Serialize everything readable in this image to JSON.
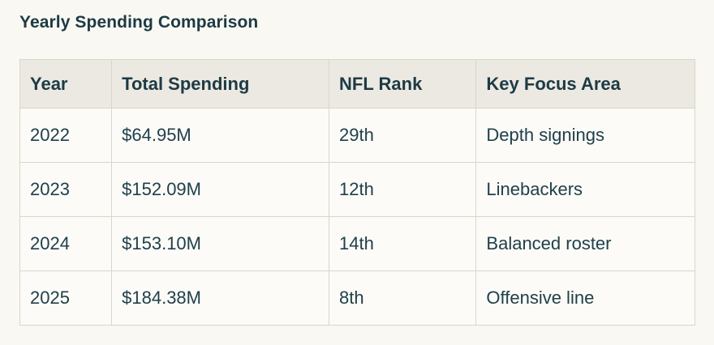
{
  "title": "Yearly Spending Comparison",
  "chart_data": {
    "type": "table",
    "title": "Yearly Spending Comparison",
    "columns": [
      "Year",
      "Total Spending",
      "NFL Rank",
      "Key Focus Area"
    ],
    "rows": [
      [
        "2022",
        "$64.95M",
        "29th",
        "Depth signings"
      ],
      [
        "2023",
        "$152.09M",
        "12th",
        "Linebackers"
      ],
      [
        "2024",
        "$153.10M",
        "14th",
        "Balanced roster"
      ],
      [
        "2025",
        "$184.38M",
        "8th",
        "Offensive line"
      ]
    ],
    "numeric": {
      "years": [
        2022,
        2023,
        2024,
        2025
      ],
      "total_spending_millions": [
        64.95,
        152.09,
        153.1,
        184.38
      ],
      "nfl_rank": [
        29,
        12,
        14,
        8
      ]
    }
  },
  "colors": {
    "page_background": "#f9f8f2",
    "header_background": "#ebe9e1",
    "cell_background": "#fcfbf7",
    "border": "#d9d6ca",
    "text": "#1e3a45"
  }
}
